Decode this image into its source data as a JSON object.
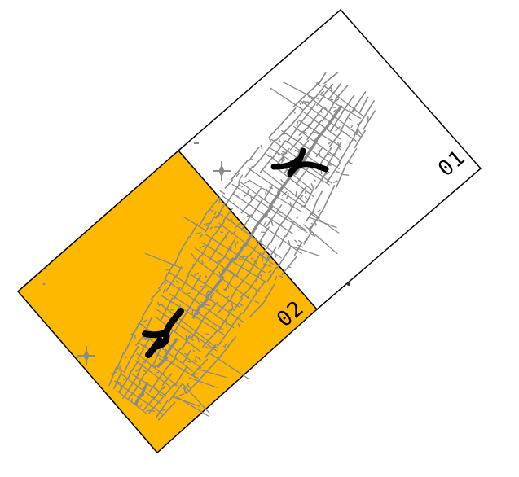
{
  "sheets": [
    {
      "id": "01",
      "label": "01",
      "highlighted": false,
      "fill": "#ffffff"
    },
    {
      "id": "02",
      "label": "02",
      "highlighted": true,
      "fill": "#ffb800"
    }
  ],
  "colors": {
    "selected_sheet": "#ffb800",
    "sheet_outline": "#000000",
    "map_features": "#8a8a8a",
    "main_route": "#000000"
  },
  "symbols": [
    "north-arrow-icon",
    "north-arrow-icon"
  ]
}
